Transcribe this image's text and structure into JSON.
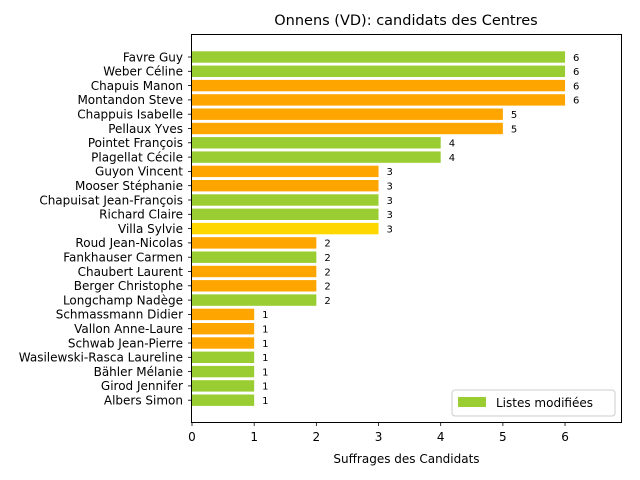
{
  "chart_data": {
    "type": "bar",
    "orientation": "horizontal",
    "title": "Onnens (VD): candidats des Centres",
    "xlabel": "Suffrages des Candidats",
    "ylabel": "",
    "xlim": [
      0,
      6.9
    ],
    "xticks": [
      0,
      1,
      2,
      3,
      4,
      5,
      6
    ],
    "grid": false,
    "legend": {
      "entries": [
        {
          "label": "Listes modifiées",
          "color": "#9acd32"
        }
      ],
      "placement": "lower-right"
    },
    "colors": {
      "green": "#9acd32",
      "orange": "#ffa500",
      "gold": "#ffd700"
    },
    "bars": [
      {
        "label": "Favre Guy",
        "value": 6,
        "color": "#9acd32"
      },
      {
        "label": "Weber Céline",
        "value": 6,
        "color": "#9acd32"
      },
      {
        "label": "Chapuis Manon",
        "value": 6,
        "color": "#ffa500"
      },
      {
        "label": "Montandon Steve",
        "value": 6,
        "color": "#ffa500"
      },
      {
        "label": "Chappuis Isabelle",
        "value": 5,
        "color": "#ffa500"
      },
      {
        "label": "Pellaux Yves",
        "value": 5,
        "color": "#ffa500"
      },
      {
        "label": "Pointet François",
        "value": 4,
        "color": "#9acd32"
      },
      {
        "label": "Plagellat Cécile",
        "value": 4,
        "color": "#9acd32"
      },
      {
        "label": "Guyon Vincent",
        "value": 3,
        "color": "#ffa500"
      },
      {
        "label": "Mooser Stéphanie",
        "value": 3,
        "color": "#ffa500"
      },
      {
        "label": "Chapuisat Jean-François",
        "value": 3,
        "color": "#9acd32"
      },
      {
        "label": "Richard Claire",
        "value": 3,
        "color": "#9acd32"
      },
      {
        "label": "Villa Sylvie",
        "value": 3,
        "color": "#ffd700"
      },
      {
        "label": "Roud Jean-Nicolas",
        "value": 2,
        "color": "#ffa500"
      },
      {
        "label": "Fankhauser Carmen",
        "value": 2,
        "color": "#9acd32"
      },
      {
        "label": "Chaubert Laurent",
        "value": 2,
        "color": "#ffa500"
      },
      {
        "label": "Berger Christophe",
        "value": 2,
        "color": "#ffa500"
      },
      {
        "label": "Longchamp Nadège",
        "value": 2,
        "color": "#9acd32"
      },
      {
        "label": "Schmassmann Didier",
        "value": 1,
        "color": "#ffa500"
      },
      {
        "label": "Vallon Anne-Laure",
        "value": 1,
        "color": "#ffa500"
      },
      {
        "label": "Schwab Jean-Pierre",
        "value": 1,
        "color": "#ffa500"
      },
      {
        "label": "Wasilewski-Rasca Laureline",
        "value": 1,
        "color": "#9acd32"
      },
      {
        "label": "Bähler Mélanie",
        "value": 1,
        "color": "#9acd32"
      },
      {
        "label": "Girod Jennifer",
        "value": 1,
        "color": "#9acd32"
      },
      {
        "label": "Albers Simon",
        "value": 1,
        "color": "#9acd32"
      }
    ]
  }
}
